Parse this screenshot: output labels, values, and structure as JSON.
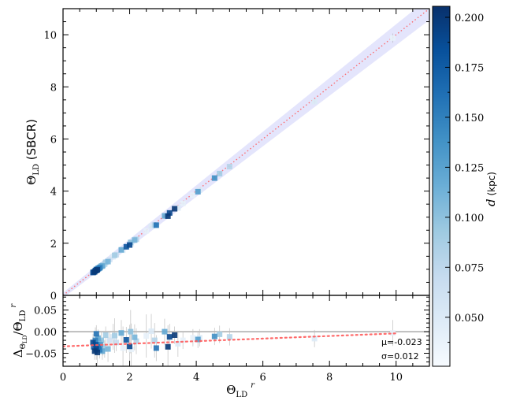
{
  "chart_data": [
    {
      "type": "scatter",
      "panel": "main",
      "ylabel": {
        "symbol": "Θ",
        "sub": "LD",
        "rest": " (SBCR)"
      },
      "xlim": [
        0,
        11
      ],
      "ylim": [
        0,
        11
      ],
      "xticks": [
        0,
        2,
        4,
        6,
        8,
        10
      ],
      "yticks": [
        0,
        2,
        4,
        6,
        8,
        10
      ],
      "reference_line": {
        "slope": 1.0,
        "intercept": 0.0,
        "style": "dotted",
        "color": "#ff5a5a"
      },
      "confidence_band": {
        "base": 0.1,
        "frac": 0.03,
        "color": "#dfe0fb"
      },
      "marker": "square"
    },
    {
      "type": "scatter",
      "panel": "residuals",
      "xlabel": {
        "symbol": "Θ",
        "sub": "LD",
        "sup": "r"
      },
      "ylabel": {
        "delta": "Δ",
        "symbol": "Θ",
        "sub": "LD",
        "slash": "/",
        "symbol2": "Θ",
        "sub2": "LD",
        "sup2": "r"
      },
      "xlim": [
        0,
        11
      ],
      "ylim": [
        -0.08,
        0.084
      ],
      "xticks": [
        0,
        2,
        4,
        6,
        8,
        10
      ],
      "xtick_labels": [
        "0",
        "2",
        "4",
        "6",
        "8",
        "10"
      ],
      "yticks": [
        -0.05,
        0.0,
        0.05
      ],
      "ytick_labels": [
        "−0.05",
        "0.00",
        "0.05"
      ],
      "zero_line": 0.0,
      "fit_line": {
        "slope": 0.003,
        "intercept": -0.034,
        "color": "#ff5a5a"
      },
      "annotations": {
        "mu": "μ=-0.023",
        "sigma": "σ=0.012"
      }
    }
  ],
  "colorbar": {
    "label": {
      "var": "d",
      "unit": " (kpc)"
    },
    "range": [
      0.0255,
      0.2055
    ],
    "ticks": [
      0.05,
      0.075,
      0.1,
      0.125,
      0.15,
      0.175,
      0.2
    ],
    "tick_labels": [
      "0.050",
      "0.075",
      "0.100",
      "0.125",
      "0.150",
      "0.175",
      "0.200"
    ],
    "colormap": [
      "#f7fbff",
      "#deebf7",
      "#c6dbef",
      "#9ecae1",
      "#6baed6",
      "#4292c6",
      "#2171b5",
      "#08519c",
      "#08306b"
    ]
  },
  "points_columns": [
    "theta_ref",
    "residual",
    "d_kpc",
    "residual_err"
  ],
  "points": [
    [
      0.9,
      -0.025,
      0.19,
      0.02
    ],
    [
      0.92,
      -0.035,
      0.17,
      0.015
    ],
    [
      0.95,
      -0.045,
      0.2,
      0.02
    ],
    [
      0.97,
      -0.02,
      0.15,
      0.03
    ],
    [
      0.98,
      -0.03,
      0.18,
      0.02
    ],
    [
      1.0,
      -0.005,
      0.16,
      0.02
    ],
    [
      1.0,
      -0.04,
      0.19,
      0.025
    ],
    [
      1.02,
      -0.03,
      0.14,
      0.02
    ],
    [
      1.03,
      -0.048,
      0.2,
      0.03
    ],
    [
      1.05,
      -0.015,
      0.12,
      0.02
    ],
    [
      1.06,
      -0.035,
      0.16,
      0.02
    ],
    [
      1.08,
      -0.025,
      0.11,
      0.02
    ],
    [
      1.1,
      -0.042,
      0.15,
      0.02
    ],
    [
      1.12,
      -0.03,
      0.13,
      0.015
    ],
    [
      1.15,
      -0.02,
      0.1,
      0.02
    ],
    [
      1.18,
      -0.045,
      0.12,
      0.02
    ],
    [
      1.2,
      -0.035,
      0.09,
      0.02
    ],
    [
      1.25,
      -0.04,
      0.08,
      0.02
    ],
    [
      1.28,
      -0.008,
      0.09,
      0.02
    ],
    [
      1.35,
      -0.04,
      0.11,
      0.03
    ],
    [
      1.4,
      -0.02,
      0.06,
      0.02
    ],
    [
      1.5,
      -0.012,
      0.05,
      0.03
    ],
    [
      1.55,
      -0.009,
      0.09,
      0.04
    ],
    [
      1.6,
      -0.025,
      0.07,
      0.02
    ],
    [
      1.75,
      -0.003,
      0.12,
      0.03
    ],
    [
      1.8,
      -0.038,
      0.04,
      0.05
    ],
    [
      1.9,
      -0.019,
      0.18,
      0.03
    ],
    [
      2.0,
      -0.034,
      0.19,
      0.05
    ],
    [
      2.03,
      0.0,
      0.1,
      0.05
    ],
    [
      2.05,
      -0.041,
      0.04,
      0.06
    ],
    [
      2.15,
      -0.013,
      0.11,
      0.03
    ],
    [
      2.2,
      -0.022,
      0.08,
      0.03
    ],
    [
      2.5,
      -0.01,
      0.04,
      0.05
    ],
    [
      2.65,
      0.001,
      0.05,
      0.04
    ],
    [
      2.75,
      -0.02,
      0.08,
      0.04
    ],
    [
      2.8,
      -0.038,
      0.16,
      0.03
    ],
    [
      3.05,
      0.0,
      0.12,
      0.03
    ],
    [
      3.2,
      -0.012,
      0.19,
      0.03
    ],
    [
      3.15,
      -0.035,
      0.2,
      0.05
    ],
    [
      3.35,
      -0.008,
      0.2,
      0.02
    ],
    [
      3.45,
      -0.028,
      0.05,
      0.03
    ],
    [
      3.6,
      -0.02,
      0.04,
      0.02
    ],
    [
      3.9,
      -0.014,
      0.04,
      0.02
    ],
    [
      4.1,
      -0.014,
      0.05,
      0.02
    ],
    [
      4.05,
      -0.018,
      0.13,
      0.02
    ],
    [
      4.55,
      -0.011,
      0.14,
      0.02
    ],
    [
      4.7,
      -0.006,
      0.09,
      0.02
    ],
    [
      5.0,
      -0.012,
      0.08,
      0.02
    ],
    [
      7.55,
      -0.016,
      0.05,
      0.02
    ],
    [
      9.9,
      -0.003,
      0.04,
      0.03
    ]
  ]
}
